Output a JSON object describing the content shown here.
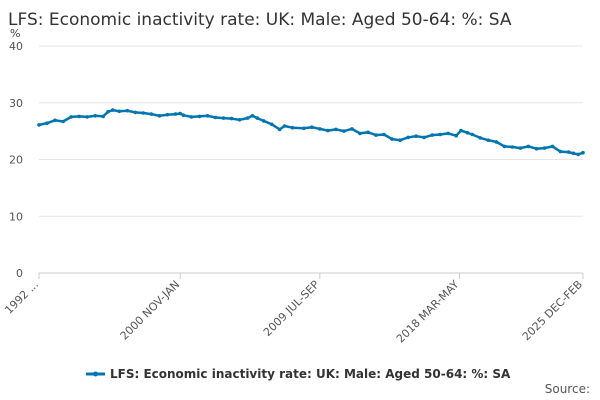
{
  "chart_data": {
    "type": "line",
    "title": "LFS: Economic inactivity rate: UK: Male: Aged 50-64: %: SA",
    "unit_label": "%",
    "ylim": [
      0,
      40
    ],
    "yticks": [
      0,
      10,
      20,
      30,
      40
    ],
    "xlim": [
      1992.0,
      2025.9
    ],
    "xtick_labels": [
      {
        "label": "1992 ...",
        "x": 1992.0
      },
      {
        "label": "2000 NOV-JAN",
        "x": 2000.8
      },
      {
        "label": "2009 JUL-SEP",
        "x": 2009.5
      },
      {
        "label": "2018 MAR-MAY",
        "x": 2018.2
      },
      {
        "label": "2025 DEC-FEB",
        "x": 2025.9
      }
    ],
    "grid": true,
    "legend_position": "bottom",
    "source_label": "Source:",
    "colors": {
      "series": "#0075b0",
      "grid": "#e6e6e6",
      "axis": "#cccccc"
    },
    "series": [
      {
        "name": "LFS: Economic inactivity rate: UK: Male: Aged 50-64: %: SA",
        "points": [
          [
            1992.0,
            26.1
          ],
          [
            1992.5,
            26.4
          ],
          [
            1993.0,
            26.9
          ],
          [
            1993.5,
            26.7
          ],
          [
            1994.0,
            27.5
          ],
          [
            1994.5,
            27.6
          ],
          [
            1995.0,
            27.5
          ],
          [
            1995.5,
            27.7
          ],
          [
            1996.0,
            27.6
          ],
          [
            1996.3,
            28.4
          ],
          [
            1996.6,
            28.7
          ],
          [
            1997.0,
            28.5
          ],
          [
            1997.5,
            28.6
          ],
          [
            1998.0,
            28.3
          ],
          [
            1998.5,
            28.2
          ],
          [
            1999.0,
            28.0
          ],
          [
            1999.5,
            27.7
          ],
          [
            2000.0,
            27.9
          ],
          [
            2000.5,
            28.0
          ],
          [
            2000.8,
            28.1
          ],
          [
            2001.0,
            27.8
          ],
          [
            2001.5,
            27.5
          ],
          [
            2002.0,
            27.6
          ],
          [
            2002.5,
            27.7
          ],
          [
            2003.0,
            27.4
          ],
          [
            2003.5,
            27.3
          ],
          [
            2004.0,
            27.2
          ],
          [
            2004.5,
            27.0
          ],
          [
            2005.0,
            27.3
          ],
          [
            2005.3,
            27.7
          ],
          [
            2005.6,
            27.3
          ],
          [
            2006.0,
            26.8
          ],
          [
            2006.5,
            26.2
          ],
          [
            2007.0,
            25.3
          ],
          [
            2007.3,
            25.9
          ],
          [
            2007.8,
            25.6
          ],
          [
            2008.5,
            25.5
          ],
          [
            2009.0,
            25.7
          ],
          [
            2009.5,
            25.4
          ],
          [
            2010.0,
            25.1
          ],
          [
            2010.5,
            25.3
          ],
          [
            2011.0,
            25.0
          ],
          [
            2011.5,
            25.4
          ],
          [
            2012.0,
            24.6
          ],
          [
            2012.5,
            24.8
          ],
          [
            2013.0,
            24.3
          ],
          [
            2013.5,
            24.4
          ],
          [
            2014.0,
            23.6
          ],
          [
            2014.5,
            23.4
          ],
          [
            2015.0,
            23.9
          ],
          [
            2015.5,
            24.1
          ],
          [
            2016.0,
            23.9
          ],
          [
            2016.5,
            24.3
          ],
          [
            2017.0,
            24.4
          ],
          [
            2017.5,
            24.6
          ],
          [
            2018.0,
            24.2
          ],
          [
            2018.3,
            25.1
          ],
          [
            2018.7,
            24.7
          ],
          [
            2019.0,
            24.4
          ],
          [
            2019.5,
            23.8
          ],
          [
            2020.0,
            23.4
          ],
          [
            2020.5,
            23.1
          ],
          [
            2021.0,
            22.3
          ],
          [
            2021.5,
            22.2
          ],
          [
            2022.0,
            22.0
          ],
          [
            2022.5,
            22.3
          ],
          [
            2023.0,
            21.9
          ],
          [
            2023.5,
            22.0
          ],
          [
            2024.0,
            22.3
          ],
          [
            2024.5,
            21.4
          ],
          [
            2025.0,
            21.3
          ],
          [
            2025.3,
            21.1
          ],
          [
            2025.6,
            20.9
          ],
          [
            2025.9,
            21.2
          ]
        ]
      }
    ]
  }
}
